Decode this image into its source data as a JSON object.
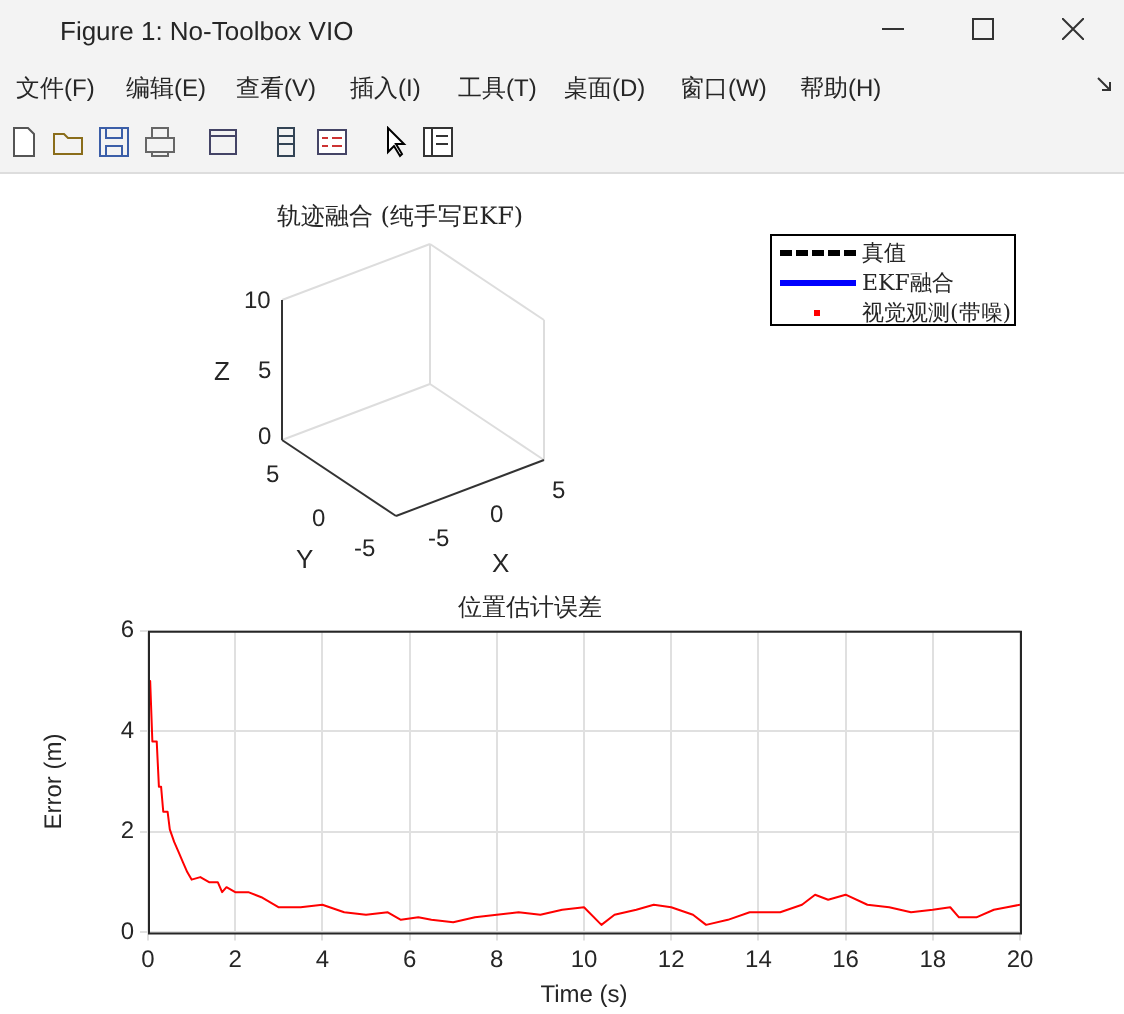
{
  "chart_data": [
    {
      "type": "other",
      "title": "轨迹融合 (纯手写EKF)",
      "xlabel": "X",
      "ylabel": "Y",
      "annotations": [
        "Figure 1: No-Toolbox VIO",
        "文件(F)",
        "编辑(E)",
        "查看(V)",
        "插入(I)",
        "工具(T)",
        "桌面(D)",
        "窗口(W)",
        "帮助(H)",
        "Z",
        "-5",
        "0",
        "5",
        "5",
        "0",
        "-5",
        "10",
        "5",
        "0",
        "真值",
        "EKF融合",
        "视觉观测(带噪)"
      ]
    },
    {
      "type": "line",
      "title": "位置估计误差",
      "xlabel": "Time (s)",
      "ylabel": "Error (m)",
      "xlim": [
        0,
        20
      ],
      "xticks": [
        0,
        2,
        4,
        6,
        8,
        10,
        12,
        14,
        16,
        18,
        20
      ],
      "ylim": [
        0,
        6
      ],
      "yticks": [
        0,
        2,
        4,
        6
      ],
      "grid": true,
      "legend": false,
      "marker": "none",
      "line_style": "solid",
      "series": [
        {
          "color": "#ff0000",
          "x": [
            0,
            0.05,
            0.1,
            0.2,
            0.25,
            0.3,
            0.35,
            0.45,
            0.5,
            0.6,
            0.7,
            0.8,
            0.9,
            1.0,
            1.2,
            1.4,
            1.6,
            1.7,
            1.8,
            2.0,
            2.3,
            2.6,
            3.0,
            3.5,
            4.0,
            4.5,
            5.0,
            5.5,
            5.8,
            6.2,
            6.5,
            7.0,
            7.5,
            8.0,
            8.5,
            9.0,
            9.5,
            10.0,
            10.4,
            10.7,
            11.2,
            11.6,
            12.0,
            12.5,
            12.8,
            13.3,
            13.8,
            14.5,
            15.0,
            15.3,
            15.6,
            16.0,
            16.5,
            17.0,
            17.5,
            18.0,
            18.4,
            18.6,
            19.0,
            19.4,
            19.7,
            20
          ],
          "values": [
            5.0,
            5.0,
            3.8,
            3.8,
            2.9,
            2.9,
            2.4,
            2.4,
            2.05,
            1.8,
            1.6,
            1.4,
            1.2,
            1.05,
            1.1,
            1.0,
            1.0,
            0.8,
            0.9,
            0.8,
            0.8,
            0.7,
            0.5,
            0.5,
            0.55,
            0.4,
            0.35,
            0.4,
            0.25,
            0.3,
            0.25,
            0.2,
            0.3,
            0.35,
            0.4,
            0.35,
            0.45,
            0.5,
            0.15,
            0.35,
            0.45,
            0.55,
            0.5,
            0.35,
            0.15,
            0.25,
            0.4,
            0.4,
            0.55,
            0.75,
            0.65,
            0.75,
            0.55,
            0.5,
            0.4,
            0.45,
            0.5,
            0.3,
            0.3,
            0.45,
            0.5,
            0.55
          ]
        }
      ]
    }
  ]
}
